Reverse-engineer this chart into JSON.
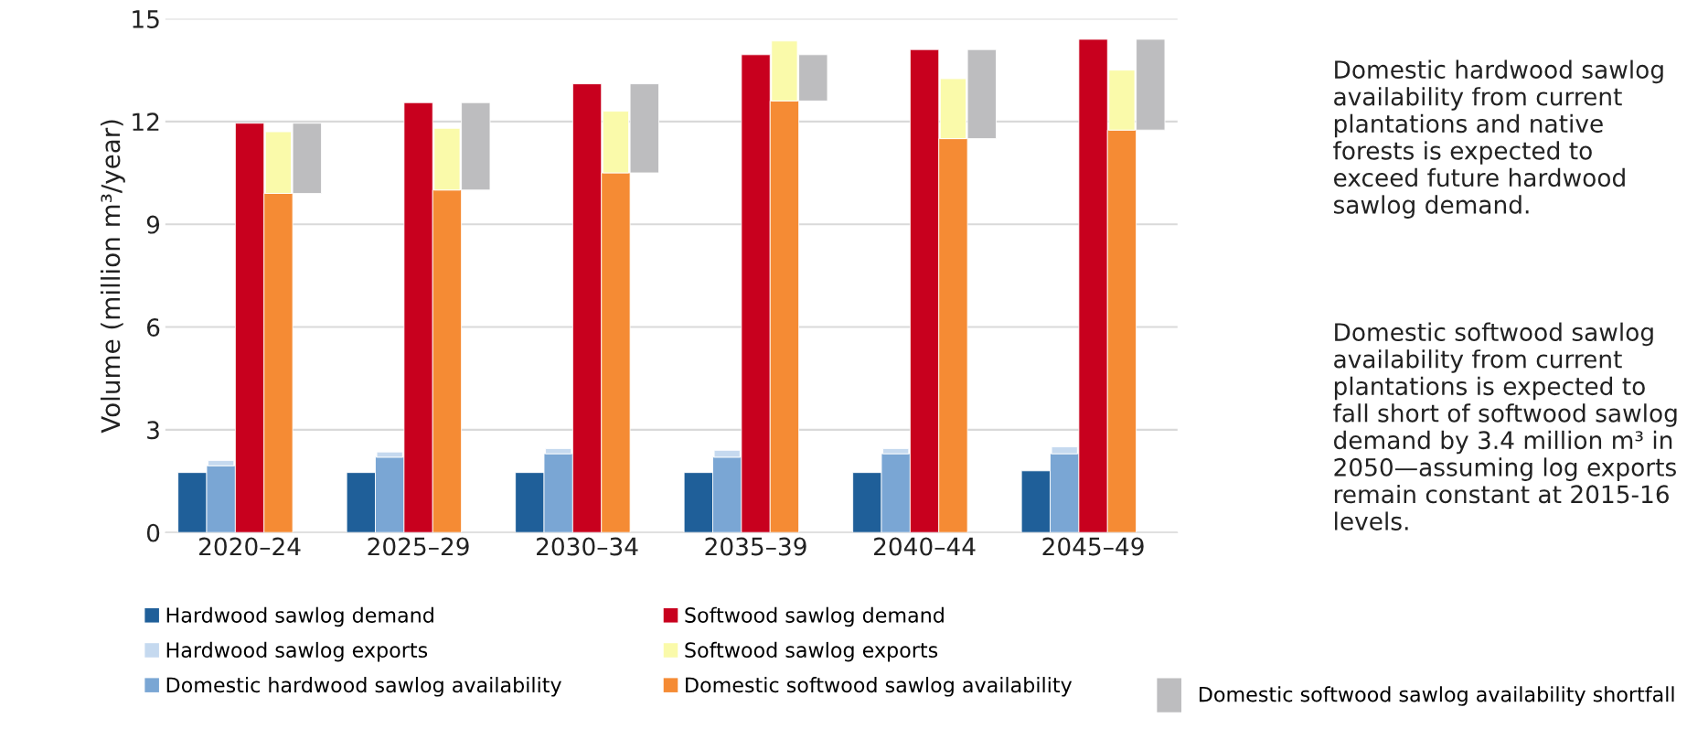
{
  "chart_data": {
    "type": "bar",
    "categories": [
      "2020–24",
      "2025–29",
      "2030–34",
      "2035–39",
      "2040–44",
      "2045–49"
    ],
    "ylabel": "Volume (million m³/year)",
    "ylim": [
      0,
      15
    ],
    "yticks": [
      0,
      3,
      6,
      9,
      12,
      15
    ],
    "grid": "y",
    "legend": "bottom",
    "series": [
      {
        "name": "Hardwood sawlog demand",
        "color": "#1f5f99",
        "values": [
          1.75,
          1.75,
          1.75,
          1.75,
          1.75,
          1.8
        ]
      },
      {
        "name": "Domestic hardwood sawlog availability",
        "color": "#7aa6d4",
        "values": [
          1.95,
          2.2,
          2.3,
          2.2,
          2.3,
          2.3
        ]
      },
      {
        "name": "Hardwood sawlog exports",
        "color": "#c5d9ef",
        "base": [
          1.95,
          2.2,
          2.3,
          2.2,
          2.3,
          2.3
        ],
        "values": [
          0.15,
          0.15,
          0.15,
          0.2,
          0.15,
          0.2
        ]
      },
      {
        "name": "Softwood sawlog demand",
        "color": "#c8001e",
        "values": [
          11.95,
          12.55,
          13.1,
          13.95,
          14.1,
          14.4
        ]
      },
      {
        "name": "Domestic softwood sawlog availability",
        "color": "#f58b34",
        "values": [
          9.9,
          10.0,
          10.5,
          12.6,
          11.5,
          11.75
        ]
      },
      {
        "name": "Softwood sawlog exports",
        "color": "#fafaaa",
        "base": [
          9.9,
          10.0,
          10.5,
          12.6,
          11.5,
          11.75
        ],
        "values": [
          1.8,
          1.8,
          1.8,
          1.75,
          1.75,
          1.75
        ]
      },
      {
        "name": "Domestic softwood sawlog availability shortfall",
        "color": "#bdbdbf",
        "base": [
          9.9,
          10.0,
          10.5,
          12.6,
          11.5,
          11.75
        ],
        "values": [
          2.05,
          2.55,
          2.6,
          1.35,
          2.6,
          2.65
        ]
      }
    ],
    "annotations": [
      "Domestic hardwood sawlog availability from current plantations and native forests is expected to exceed future hardwood sawlog demand.",
      "Domestic softwood sawlog availability from current plantations is expected to fall short of softwood sawlog demand by 3.4 million m³ in 2050—assuming log exports remain constant at 2015-16 levels."
    ]
  }
}
